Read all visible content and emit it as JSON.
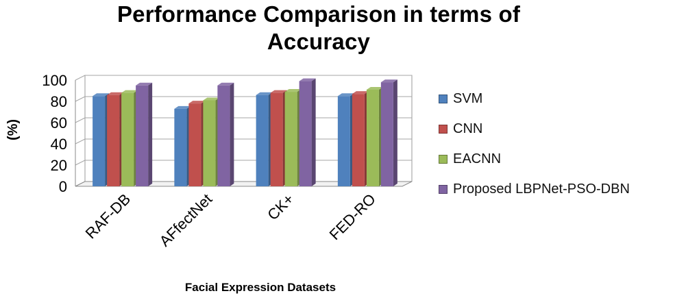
{
  "chart_data": {
    "type": "bar",
    "title_lines": [
      "Performance Comparison in terms of",
      "Accuracy"
    ],
    "xlabel": "Facial Expression Datasets",
    "ylabel": "(%)",
    "ylim": [
      0,
      100
    ],
    "yticks": [
      "0",
      "20",
      "40",
      "60",
      "80",
      "100"
    ],
    "grid": true,
    "legend_position": "right",
    "categories": [
      "RAF-DB",
      "AFfectNet",
      "CK+",
      "FED-RO"
    ],
    "series": [
      {
        "name": "SVM",
        "color": "#4f81bd",
        "values": [
          85,
          73,
          86,
          85
        ]
      },
      {
        "name": "CNN",
        "color": "#c0504d",
        "values": [
          86,
          78,
          88,
          87
        ]
      },
      {
        "name": "EACNN",
        "color": "#9bbb59",
        "values": [
          88,
          81,
          89,
          91
        ]
      },
      {
        "name": "Proposed LBPNet-PSO-DBN",
        "color": "#8064a2",
        "values": [
          95,
          95,
          99,
          98
        ]
      }
    ]
  }
}
